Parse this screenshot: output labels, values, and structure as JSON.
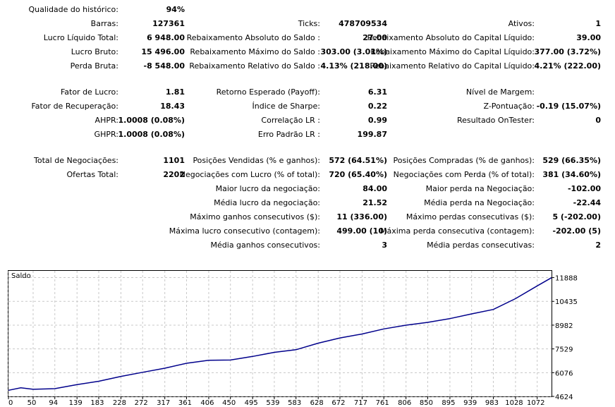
{
  "stats": {
    "quality_label": "Qualidade do histórico:",
    "quality_value": "94%",
    "bars_label": "Barras:",
    "bars_value": "127361",
    "net_profit_label": "Lucro Líquido Total:",
    "net_profit_value": "6 948.00",
    "gross_profit_label": "Lucro Bruto:",
    "gross_profit_value": "15 496.00",
    "gross_loss_label": "Perda Bruta:",
    "gross_loss_value": "-8 548.00",
    "ticks_label": "Ticks:",
    "ticks_value": "478709534",
    "abs_dd_balance_label": "Rebaixamento Absoluto do Saldo :",
    "abs_dd_balance_value": "27.00",
    "max_dd_balance_label": "Rebaixamento Máximo do Saldo :",
    "max_dd_balance_value": "303.00 (3.01%)",
    "rel_dd_balance_label": "Rebaixamento Relativo do Saldo :",
    "rel_dd_balance_value": "4.13% (218.00)",
    "assets_label": "Ativos:",
    "assets_value": "1",
    "abs_dd_equity_label": "Rebaixamento Absoluto do Capital Líquido:",
    "abs_dd_equity_value": "39.00",
    "max_dd_equity_label": "Rebaixamento Máximo do Capital Líquido:",
    "max_dd_equity_value": "377.00 (3.72%)",
    "rel_dd_equity_label": "Rebaixamento Relativo do Capital Líquido:",
    "rel_dd_equity_value": "4.21% (222.00)",
    "profit_factor_label": "Fator de Lucro:",
    "profit_factor_value": "1.81",
    "recovery_label": "Fator de Recuperação:",
    "recovery_value": "18.43",
    "ahpr_label": "AHPR:",
    "ahpr_value": "1.0008 (0.08%)",
    "ghpr_label": "GHPR:",
    "ghpr_value": "1.0008 (0.08%)",
    "expected_label": "Retorno Esperado (Payoff):",
    "expected_value": "6.31",
    "sharpe_label": "Índice de Sharpe:",
    "sharpe_value": "0.22",
    "lr_corr_label": "Correlação LR :",
    "lr_corr_value": "0.99",
    "lr_err_label": "Erro Padrão LR :",
    "lr_err_value": "199.87",
    "margin_label": "Nível de Margem:",
    "margin_value": "",
    "zscore_label": "Z-Pontuação:",
    "zscore_value": "-0.19 (15.07%)",
    "ontester_label": "Resultado OnTester:",
    "ontester_value": "0",
    "total_trades_label": "Total de Negociações:",
    "total_trades_value": "1101",
    "total_deals_label": "Ofertas Total:",
    "total_deals_value": "2202",
    "short_label": "Posições Vendidas (% e ganhos):",
    "short_value": "572 (64.51%)",
    "profit_trades_label": "Negociações com Lucro (% of total):",
    "profit_trades_value": "720 (65.40%)",
    "largest_profit_label": "Maior lucro da negociação:",
    "largest_profit_value": "84.00",
    "avg_profit_label": "Média lucro da negociação:",
    "avg_profit_value": "21.52",
    "max_cons_wins_label": "Máximo ganhos consecutivos ($):",
    "max_cons_wins_value": "11 (336.00)",
    "max_cons_profit_label": "Máxima lucro consecutivo (contagem):",
    "max_cons_profit_value": "499.00 (10)",
    "avg_cons_wins_label": "Média ganhos consecutivos:",
    "avg_cons_wins_value": "3",
    "long_label": "Posições Compradas (% de ganhos):",
    "long_value": "529 (66.35%)",
    "loss_trades_label": "Negociações com Perda (% of total):",
    "loss_trades_value": "381 (34.60%)",
    "largest_loss_label": "Maior perda na Negociação:",
    "largest_loss_value": "-102.00",
    "avg_loss_label": "Média perda na Negociação:",
    "avg_loss_value": "-22.44",
    "max_cons_losses_label": "Máximo perdas consecutivas ($):",
    "max_cons_losses_value": "5 (-202.00)",
    "max_cons_loss_label": "Máxima perda consecutiva (contagem):",
    "max_cons_loss_value": "-202.00 (5)",
    "avg_cons_losses_label": "Média perdas consecutivas:",
    "avg_cons_losses_value": "2"
  },
  "chart_data": {
    "type": "line",
    "title": "Saldo",
    "xlabel": "",
    "ylabel": "",
    "x_ticks": [
      "0",
      "50",
      "94",
      "139",
      "183",
      "228",
      "272",
      "317",
      "361",
      "406",
      "450",
      "495",
      "539",
      "583",
      "628",
      "672",
      "717",
      "761",
      "806",
      "850",
      "895",
      "939",
      "983",
      "1028",
      "1072"
    ],
    "y_ticks": [
      "11888",
      "10435",
      "8982",
      "7529",
      "6076",
      "4624"
    ],
    "ylim": [
      4624,
      12300
    ],
    "xlim": [
      0,
      1101
    ],
    "grid": true,
    "line_color": "#00008b",
    "series": [
      {
        "x": [
          0,
          25,
          50,
          94,
          139,
          183,
          228,
          272,
          317,
          361,
          406,
          450,
          495,
          539,
          583,
          628,
          672,
          717,
          761,
          806,
          850,
          895,
          939,
          983,
          1028,
          1072,
          1101
        ],
        "y": [
          5000,
          5150,
          5060,
          5100,
          5350,
          5550,
          5850,
          6100,
          6350,
          6650,
          6830,
          6850,
          7070,
          7320,
          7480,
          7880,
          8200,
          8440,
          8750,
          8980,
          9150,
          9380,
          9670,
          9940,
          10600,
          11380,
          11880
        ]
      }
    ]
  }
}
